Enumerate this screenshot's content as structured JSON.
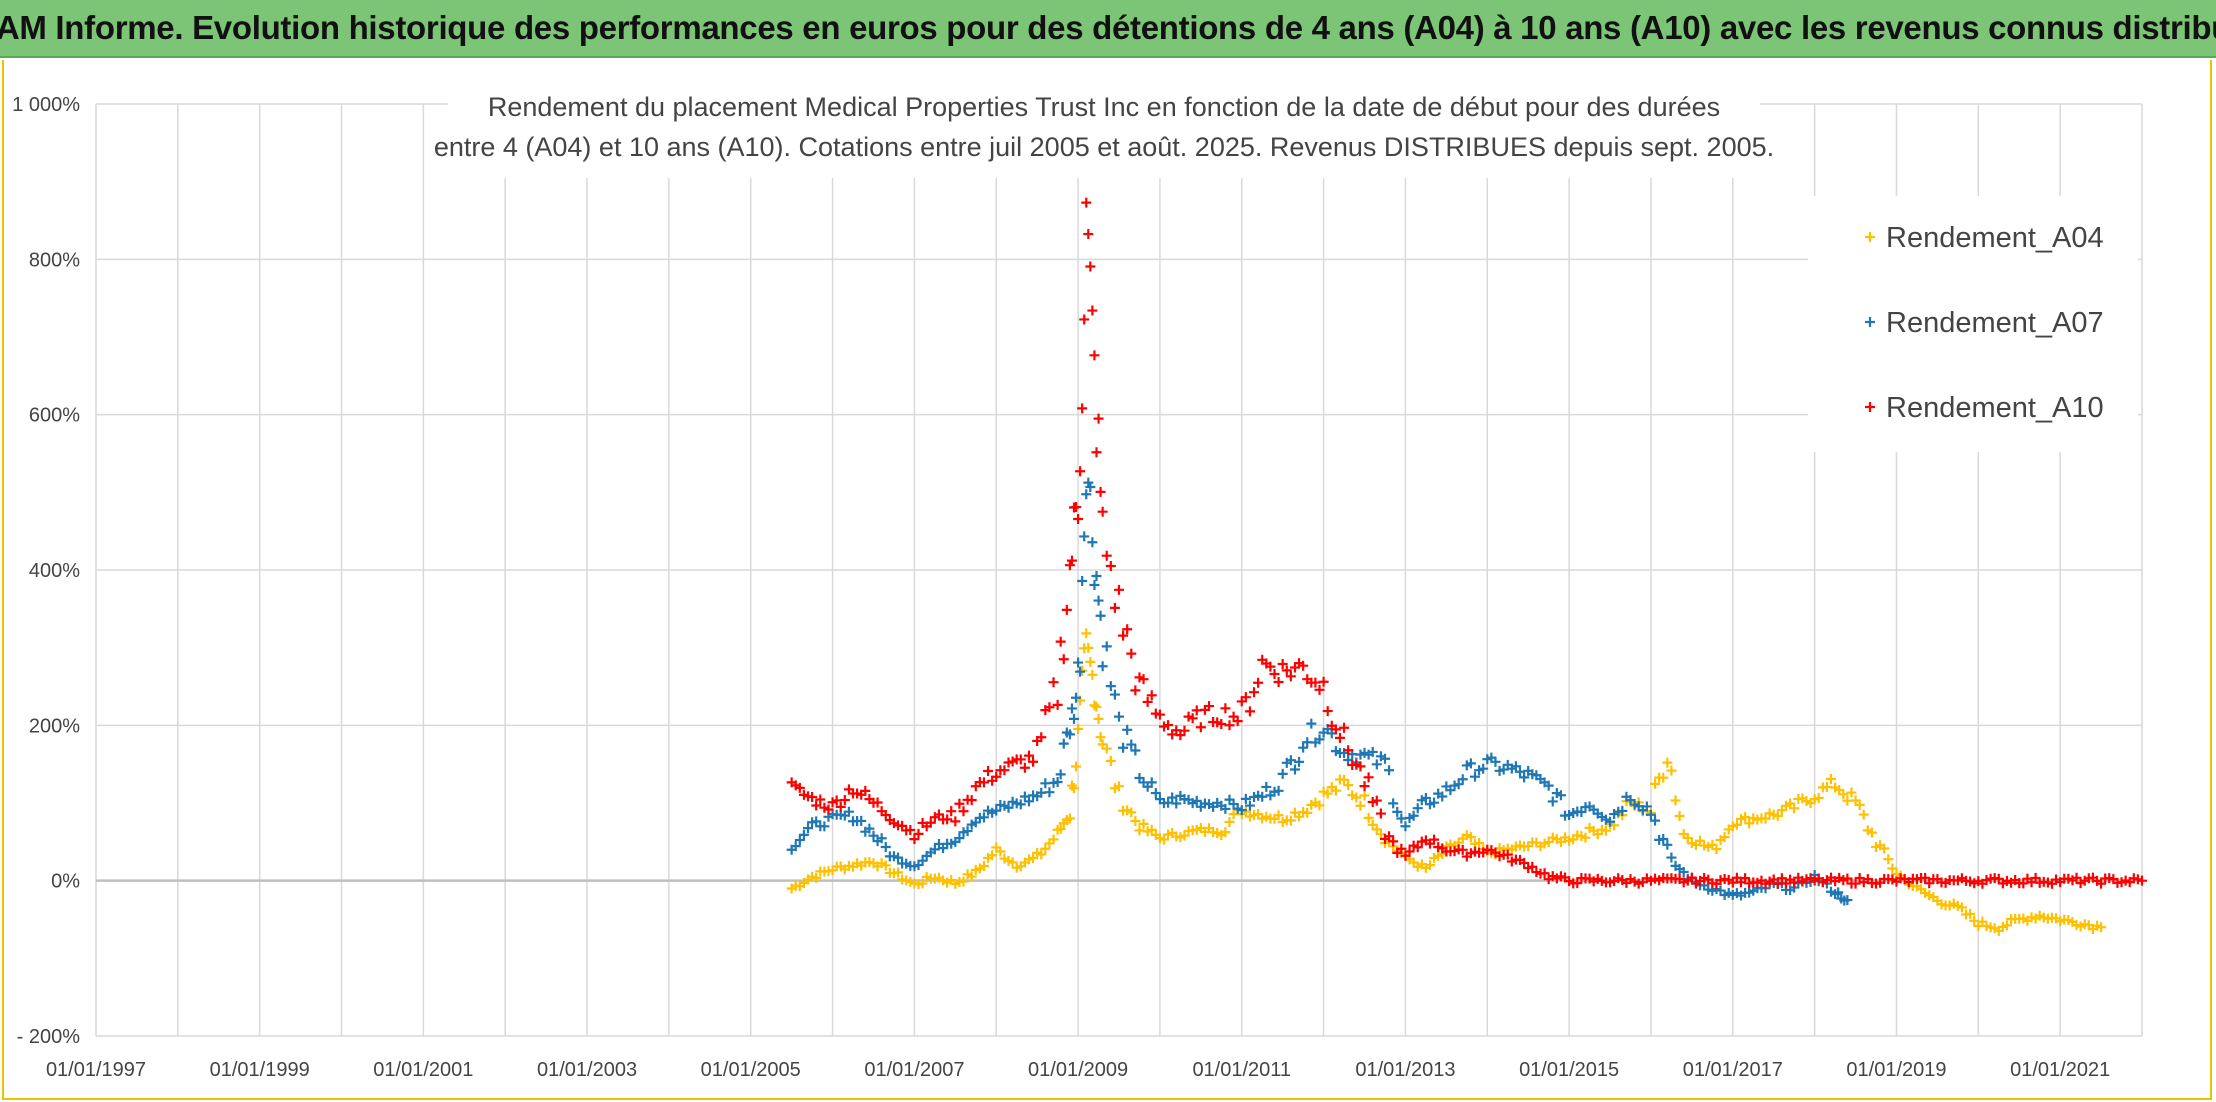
{
  "banner": {
    "title": "ADAM Informe. Evolution historique des performances en euros pour des détentions de 4 ans (A04) à 10 ans (A10) avec les revenus connus distribués"
  },
  "chart_data": {
    "type": "scatter",
    "title_lines": [
      "Rendement du placement Medical Properties Trust Inc en fonction de la date de début pour des durées",
      "entre 4 (A04) et 10 ans (A10). Cotations entre juil 2005 et août. 2025. Revenus DISTRIBUES depuis sept. 2005."
    ],
    "x_ticks": [
      "01/01/1997",
      "01/01/1999",
      "01/01/2001",
      "01/01/2003",
      "01/01/2005",
      "01/01/2007",
      "01/01/2009",
      "01/01/2011",
      "01/01/2013",
      "01/01/2015",
      "01/01/2017",
      "01/01/2019",
      "01/01/2021"
    ],
    "xlim": [
      1997.0,
      2022.0
    ],
    "y_ticks": [
      "- 200%",
      "0%",
      "200%",
      "400%",
      "600%",
      "800%",
      "1 000%"
    ],
    "ylim": [
      -200,
      1000
    ],
    "grid": true,
    "legend_position": "top-right",
    "series": [
      {
        "name": "Rendement_A04",
        "color": "#ffc000",
        "points": [
          [
            2005.5,
            -10
          ],
          [
            2005.75,
            5
          ],
          [
            2006.0,
            15
          ],
          [
            2006.25,
            20
          ],
          [
            2006.5,
            25
          ],
          [
            2006.75,
            10
          ],
          [
            2007.0,
            -5
          ],
          [
            2007.25,
            5
          ],
          [
            2007.5,
            -3
          ],
          [
            2007.75,
            10
          ],
          [
            2008.0,
            40
          ],
          [
            2008.25,
            20
          ],
          [
            2008.5,
            30
          ],
          [
            2008.75,
            60
          ],
          [
            2008.9,
            90
          ],
          [
            2009.0,
            180
          ],
          [
            2009.1,
            300
          ],
          [
            2009.2,
            250
          ],
          [
            2009.3,
            180
          ],
          [
            2009.5,
            110
          ],
          [
            2009.75,
            70
          ],
          [
            2010.0,
            55
          ],
          [
            2010.25,
            60
          ],
          [
            2010.5,
            65
          ],
          [
            2010.75,
            65
          ],
          [
            2011.0,
            90
          ],
          [
            2011.25,
            85
          ],
          [
            2011.5,
            80
          ],
          [
            2011.75,
            90
          ],
          [
            2012.0,
            110
          ],
          [
            2012.25,
            125
          ],
          [
            2012.5,
            100
          ],
          [
            2012.75,
            55
          ],
          [
            2013.0,
            30
          ],
          [
            2013.25,
            15
          ],
          [
            2013.5,
            40
          ],
          [
            2013.75,
            55
          ],
          [
            2014.0,
            35
          ],
          [
            2014.5,
            45
          ],
          [
            2015.0,
            55
          ],
          [
            2015.5,
            70
          ],
          [
            2015.75,
            100
          ],
          [
            2016.0,
            90
          ],
          [
            2016.2,
            170
          ],
          [
            2016.4,
            60
          ],
          [
            2016.75,
            40
          ],
          [
            2017.0,
            75
          ],
          [
            2017.25,
            80
          ],
          [
            2017.5,
            85
          ],
          [
            2017.75,
            95
          ],
          [
            2018.0,
            110
          ],
          [
            2018.25,
            125
          ],
          [
            2018.5,
            100
          ],
          [
            2018.75,
            50
          ],
          [
            2019.0,
            10
          ],
          [
            2019.25,
            -10
          ],
          [
            2019.5,
            -25
          ],
          [
            2019.75,
            -35
          ],
          [
            2020.0,
            -55
          ],
          [
            2020.25,
            -60
          ],
          [
            2020.5,
            -50
          ],
          [
            2020.75,
            -45
          ],
          [
            2021.0,
            -50
          ],
          [
            2021.25,
            -55
          ],
          [
            2021.5,
            -60
          ]
        ]
      },
      {
        "name": "Rendement_A07",
        "color": "#1f77b4",
        "points": [
          [
            2005.5,
            45
          ],
          [
            2005.75,
            70
          ],
          [
            2006.0,
            80
          ],
          [
            2006.25,
            85
          ],
          [
            2006.5,
            60
          ],
          [
            2006.75,
            30
          ],
          [
            2007.0,
            20
          ],
          [
            2007.25,
            40
          ],
          [
            2007.5,
            55
          ],
          [
            2007.75,
            80
          ],
          [
            2008.0,
            90
          ],
          [
            2008.25,
            100
          ],
          [
            2008.5,
            110
          ],
          [
            2008.75,
            130
          ],
          [
            2008.9,
            200
          ],
          [
            2009.0,
            250
          ],
          [
            2009.1,
            550
          ],
          [
            2009.2,
            420
          ],
          [
            2009.3,
            310
          ],
          [
            2009.5,
            200
          ],
          [
            2009.75,
            140
          ],
          [
            2010.0,
            100
          ],
          [
            2010.25,
            105
          ],
          [
            2010.5,
            100
          ],
          [
            2010.75,
            100
          ],
          [
            2011.0,
            95
          ],
          [
            2011.25,
            110
          ],
          [
            2011.5,
            130
          ],
          [
            2011.75,
            180
          ],
          [
            2012.0,
            200
          ],
          [
            2012.25,
            165
          ],
          [
            2012.5,
            160
          ],
          [
            2012.75,
            150
          ],
          [
            2013.0,
            70
          ],
          [
            2013.25,
            100
          ],
          [
            2013.5,
            115
          ],
          [
            2013.75,
            140
          ],
          [
            2014.0,
            150
          ],
          [
            2014.25,
            145
          ],
          [
            2014.5,
            135
          ],
          [
            2014.75,
            120
          ],
          [
            2015.0,
            85
          ],
          [
            2015.25,
            100
          ],
          [
            2015.5,
            80
          ],
          [
            2015.75,
            110
          ],
          [
            2016.0,
            90
          ],
          [
            2016.25,
            25
          ],
          [
            2016.5,
            0
          ],
          [
            2016.75,
            -10
          ],
          [
            2017.0,
            -20
          ],
          [
            2017.25,
            -15
          ],
          [
            2017.5,
            -5
          ],
          [
            2017.75,
            -10
          ],
          [
            2018.0,
            5
          ],
          [
            2018.25,
            -15
          ],
          [
            2018.4,
            -25
          ]
        ]
      },
      {
        "name": "Rendement_A10",
        "color": "#ff0000",
        "points": [
          [
            2005.5,
            120
          ],
          [
            2005.75,
            105
          ],
          [
            2006.0,
            95
          ],
          [
            2006.25,
            120
          ],
          [
            2006.5,
            100
          ],
          [
            2006.75,
            80
          ],
          [
            2007.0,
            60
          ],
          [
            2007.25,
            80
          ],
          [
            2007.5,
            85
          ],
          [
            2007.75,
            120
          ],
          [
            2008.0,
            140
          ],
          [
            2008.25,
            150
          ],
          [
            2008.5,
            160
          ],
          [
            2008.75,
            250
          ],
          [
            2008.9,
            400
          ],
          [
            2009.0,
            500
          ],
          [
            2009.1,
            850
          ],
          [
            2009.2,
            650
          ],
          [
            2009.3,
            450
          ],
          [
            2009.5,
            350
          ],
          [
            2009.75,
            250
          ],
          [
            2010.0,
            210
          ],
          [
            2010.25,
            190
          ],
          [
            2010.5,
            210
          ],
          [
            2010.75,
            215
          ],
          [
            2011.0,
            210
          ],
          [
            2011.25,
            280
          ],
          [
            2011.5,
            270
          ],
          [
            2011.75,
            275
          ],
          [
            2012.0,
            250
          ],
          [
            2012.25,
            180
          ],
          [
            2012.5,
            130
          ],
          [
            2012.75,
            60
          ],
          [
            2013.0,
            30
          ],
          [
            2013.25,
            55
          ],
          [
            2013.5,
            40
          ],
          [
            2013.75,
            35
          ],
          [
            2014.0,
            40
          ],
          [
            2014.25,
            30
          ],
          [
            2014.5,
            20
          ],
          [
            2014.75,
            5
          ],
          [
            2015.0,
            0
          ],
          [
            2015.5,
            0
          ],
          [
            2016.0,
            0
          ],
          [
            2016.5,
            0
          ],
          [
            2017.0,
            0
          ],
          [
            2017.5,
            0
          ],
          [
            2018.0,
            0
          ],
          [
            2018.5,
            0
          ],
          [
            2019.0,
            0
          ],
          [
            2019.5,
            0
          ],
          [
            2020.0,
            0
          ],
          [
            2020.5,
            0
          ],
          [
            2021.0,
            0
          ],
          [
            2021.5,
            0
          ],
          [
            2022.0,
            0
          ]
        ]
      }
    ]
  }
}
